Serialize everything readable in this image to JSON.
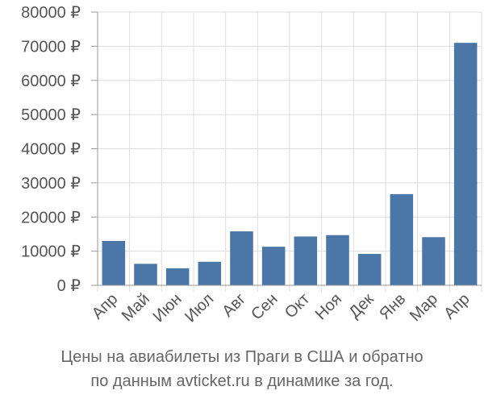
{
  "chart_data": {
    "type": "bar",
    "categories": [
      "Апр",
      "Май",
      "Июн",
      "Июл",
      "Авг",
      "Сен",
      "Окт",
      "Ноя",
      "Дек",
      "Янв",
      "Мар",
      "Апр"
    ],
    "values": [
      13000,
      6300,
      5000,
      6900,
      15800,
      11300,
      14300,
      14700,
      9200,
      26700,
      14100,
      71000
    ],
    "y_ticks": [
      "0 ₽",
      "10000 ₽",
      "20000 ₽",
      "30000 ₽",
      "40000 ₽",
      "50000 ₽",
      "60000 ₽",
      "70000 ₽",
      "80000 ₽"
    ],
    "ylim": [
      0,
      80000
    ],
    "grid": true,
    "bar_color": "#4a76a8",
    "grid_color": "#dddddd",
    "axis_color": "#999999",
    "title_lines": [
      "Цены на авиабилеты из Праги в США и обратно",
      "по данным avticket.ru в динамике за год."
    ]
  }
}
